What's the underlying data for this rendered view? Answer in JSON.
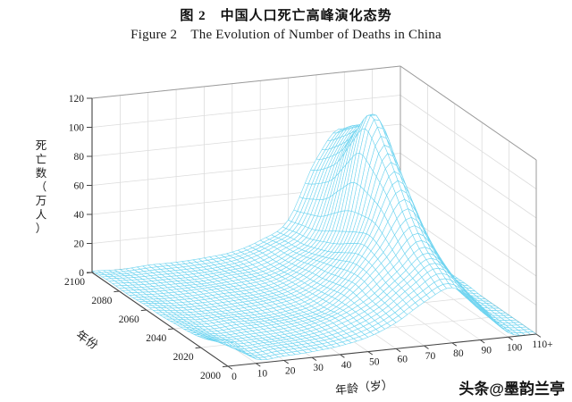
{
  "figure": {
    "title_cn": "图 2　中国人口死亡高峰演化态势",
    "title_en": "Figure 2 The Evolution of Number of Deaths in China",
    "watermark": "头条@墨韵兰亭"
  },
  "chart_data": {
    "type": "surface",
    "title": "中国人口死亡高峰演化态势 / The Evolution of Number of Deaths in China",
    "xlabel": "年龄（岁）",
    "ylabel": "年份",
    "zlabel": "死亡数（万人）",
    "x_ages": [
      0,
      10,
      20,
      30,
      40,
      50,
      60,
      70,
      80,
      90,
      100,
      110
    ],
    "x_tick_labels": [
      "0",
      "10",
      "20",
      "30",
      "40",
      "50",
      "60",
      "70",
      "80",
      "90",
      "100",
      "110+"
    ],
    "y_years": [
      2000,
      2010,
      2020,
      2030,
      2040,
      2050,
      2060,
      2070,
      2080,
      2090,
      2100
    ],
    "y_tick_values": [
      2000,
      2020,
      2040,
      2060,
      2080,
      2100
    ],
    "z_ticks": [
      0,
      20,
      40,
      60,
      80,
      100,
      120
    ],
    "zlim": [
      0,
      120
    ],
    "mesh_color": "#6fd4f0",
    "grid_color": "#dcdcdc",
    "box_color": "#9b9b9b",
    "z_values": [
      [
        18,
        3,
        3,
        4,
        6,
        10,
        18,
        30,
        38,
        24,
        3,
        0
      ],
      [
        11,
        2,
        3,
        4,
        6,
        11,
        20,
        34,
        45,
        27,
        4,
        0
      ],
      [
        7,
        2,
        2,
        3,
        6,
        12,
        22,
        38,
        53,
        31,
        5,
        0
      ],
      [
        5,
        1,
        2,
        3,
        5,
        10,
        25,
        45,
        67,
        38,
        7,
        0
      ],
      [
        4,
        1,
        2,
        2,
        4,
        9,
        23,
        50,
        86,
        48,
        9,
        0
      ],
      [
        3,
        1,
        1,
        2,
        4,
        8,
        20,
        46,
        104,
        60,
        12,
        1
      ],
      [
        3,
        1,
        1,
        2,
        3,
        7,
        18,
        40,
        118,
        76,
        15,
        1
      ],
      [
        2,
        1,
        1,
        2,
        3,
        6,
        15,
        34,
        102,
        90,
        20,
        1
      ],
      [
        2,
        1,
        1,
        1,
        3,
        5,
        13,
        28,
        82,
        93,
        25,
        2
      ],
      [
        2,
        1,
        1,
        1,
        2,
        5,
        12,
        25,
        70,
        88,
        28,
        2
      ],
      [
        1,
        0,
        1,
        1,
        2,
        4,
        10,
        22,
        62,
        80,
        30,
        2
      ]
    ]
  }
}
